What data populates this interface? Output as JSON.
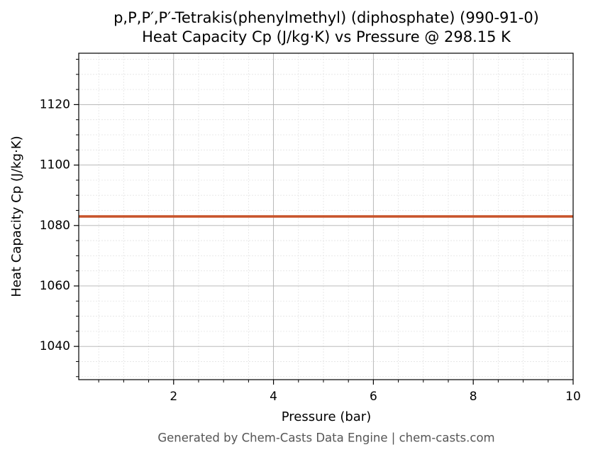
{
  "chart_data": {
    "type": "line",
    "title": "p,P,P′,P′-Tetrakis(phenylmethyl) (diphosphate) (990-91-0)",
    "subtitle": "Heat Capacity Cp (J/kg·K) vs Pressure @ 298.15 K",
    "x_label": "Pressure (bar)",
    "y_label": "Heat Capacity Cp (J/kg·K)",
    "footer": "Generated by Chem-Casts Data Engine | chem-casts.com",
    "x": [
      0.1,
      10
    ],
    "series": [
      {
        "name": "Cp",
        "color": "#c8532a",
        "values": [
          1083,
          1083
        ]
      }
    ],
    "xlim": [
      0.1,
      10
    ],
    "xticks": [
      2,
      4,
      6,
      8,
      10
    ],
    "ylim": [
      1029,
      1137
    ],
    "yticks": [
      1040,
      1060,
      1080,
      1100,
      1120
    ],
    "xminorticks": [
      0.5,
      1,
      1.5,
      2.5,
      3,
      3.5,
      4.5,
      5,
      5.5,
      6.5,
      7,
      7.5,
      8.5,
      9,
      9.5
    ],
    "yminorticks": [
      1030,
      1035,
      1045,
      1050,
      1055,
      1065,
      1070,
      1075,
      1085,
      1090,
      1095,
      1105,
      1110,
      1115,
      1125,
      1130,
      1135
    ],
    "grid": true
  }
}
